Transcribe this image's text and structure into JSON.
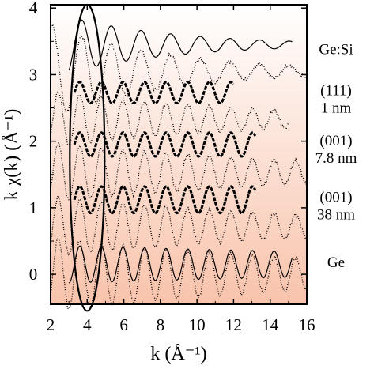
{
  "chart_data": {
    "type": "line",
    "xlabel": "k (Å⁻¹)",
    "ylabel": "k χ(k) (Å⁻¹)",
    "xlim": [
      2,
      16
    ],
    "ylim": [
      -0.45,
      4.05
    ],
    "xticks": [
      "2",
      "4",
      "6",
      "8",
      "10",
      "12",
      "14",
      "16"
    ],
    "yticks": [
      "0",
      "1",
      "2",
      "3",
      "4"
    ],
    "grid": false,
    "legend": "none",
    "background_gradient": {
      "top": "#ffffff",
      "bottom": "#f8c3ab"
    },
    "annotations": [
      {
        "lines": [
          "Ge:Si"
        ],
        "x": 15.9,
        "y": 3.38
      },
      {
        "lines": [
          "(111)",
          "1 nm"
        ],
        "x": 15.9,
        "y": 2.63
      },
      {
        "lines": [
          "(001)",
          "7.8 nm"
        ],
        "x": 15.9,
        "y": 1.88
      },
      {
        "lines": [
          "(001)",
          "38 nm"
        ],
        "x": 15.9,
        "y": 1.03
      },
      {
        "lines": [
          "Ge"
        ],
        "x": 15.9,
        "y": 0.18
      }
    ],
    "ellipse": {
      "cx": 4.0,
      "cy": 1.75,
      "rx": 0.95,
      "ry": 2.3
    },
    "series": [
      {
        "style": "solid",
        "offset": 3.45,
        "xmin": 3.0,
        "xmax": 15.2,
        "amp": 0.42,
        "decay": 0.17,
        "k0": 3.3,
        "dk": 1.62,
        "phase": 0.0
      },
      {
        "style": "dotted",
        "offset": 3.05,
        "xmin": 2.0,
        "xmax": 16.0,
        "amp": 0.7,
        "decay": 0.16,
        "k0": 3.3,
        "dk": 1.62,
        "phase": 0.0
      },
      {
        "style": "dashed",
        "offset": 2.73,
        "xmin": 3.3,
        "xmax": 12.0,
        "amp": 0.16,
        "decay": 0.0,
        "k0": 3.3,
        "dk": 1.18,
        "phase": 0.0
      },
      {
        "style": "dotted",
        "offset": 2.33,
        "xmin": 2.0,
        "xmax": 15.0,
        "amp": 0.42,
        "decay": 0.09,
        "k0": 3.3,
        "dk": 1.18,
        "phase": 0.0
      },
      {
        "style": "dashed",
        "offset": 1.95,
        "xmin": 3.3,
        "xmax": 13.2,
        "amp": 0.18,
        "decay": 0.0,
        "k0": 3.3,
        "dk": 1.18,
        "phase": 0.0
      },
      {
        "style": "dotted",
        "offset": 1.53,
        "xmin": 2.0,
        "xmax": 16.0,
        "amp": 0.45,
        "decay": 0.07,
        "k0": 3.3,
        "dk": 1.18,
        "phase": 0.0
      },
      {
        "style": "dashed",
        "offset": 1.12,
        "xmin": 3.3,
        "xmax": 13.2,
        "amp": 0.2,
        "decay": 0.0,
        "k0": 3.3,
        "dk": 1.18,
        "phase": 0.0
      },
      {
        "style": "dotted",
        "offset": 0.72,
        "xmin": 2.0,
        "xmax": 16.0,
        "amp": 0.45,
        "decay": 0.07,
        "k0": 3.3,
        "dk": 1.18,
        "phase": 0.0
      },
      {
        "style": "solid",
        "offset": 0.15,
        "xmin": 3.0,
        "xmax": 15.2,
        "amp": 0.28,
        "decay": 0.03,
        "k0": 3.3,
        "dk": 1.18,
        "phase": 0.0
      },
      {
        "style": "dotted",
        "offset": 0.0,
        "xmin": 2.0,
        "xmax": 16.0,
        "amp": 0.55,
        "decay": 0.06,
        "k0": 3.3,
        "dk": 1.18,
        "phase": 0.0
      }
    ]
  }
}
